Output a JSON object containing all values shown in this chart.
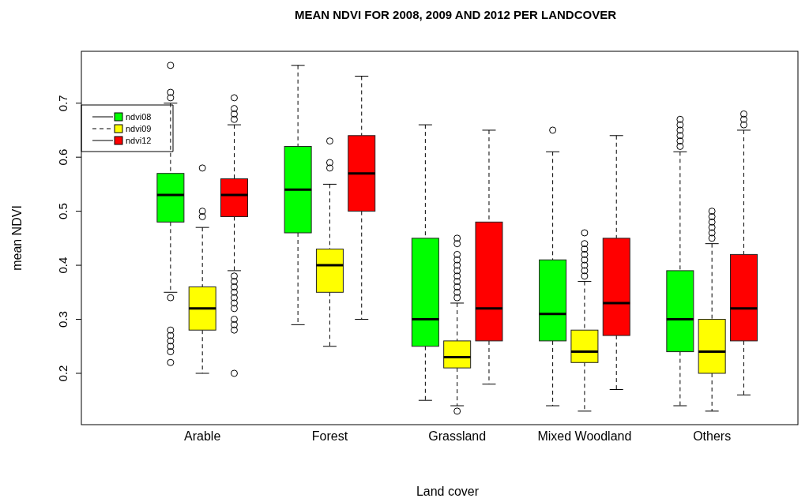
{
  "chart_data": {
    "type": "box",
    "title": "MEAN NDVI FOR 2008, 2009 AND 2012 PER LANDCOVER",
    "xlabel": "Land cover",
    "ylabel": "mean NDVI",
    "categories": [
      "Arable",
      "Forest",
      "Grassland",
      "Mixed Woodland",
      "Others"
    ],
    "ylim": [
      0.105,
      0.796
    ],
    "yticks": [
      0.2,
      0.3,
      0.4,
      0.5,
      0.6,
      0.7
    ],
    "grid": false,
    "legend": "top left",
    "series": [
      {
        "name": "ndvi08",
        "color": "#00ff00",
        "line_style": "solid",
        "boxes": [
          {
            "low": 0.35,
            "q1": 0.48,
            "median": 0.53,
            "q3": 0.57,
            "high": 0.7,
            "outliers": [
              0.77,
              0.72,
              0.71,
              0.34,
              0.28,
              0.27,
              0.26,
              0.25,
              0.24,
              0.22
            ]
          },
          {
            "low": 0.29,
            "q1": 0.46,
            "median": 0.54,
            "q3": 0.62,
            "high": 0.77
          },
          {
            "low": 0.15,
            "q1": 0.25,
            "median": 0.3,
            "q3": 0.45,
            "high": 0.66
          },
          {
            "low": 0.14,
            "q1": 0.26,
            "median": 0.31,
            "q3": 0.41,
            "high": 0.61,
            "outliers": [
              0.65
            ]
          },
          {
            "low": 0.14,
            "q1": 0.24,
            "median": 0.3,
            "q3": 0.39,
            "high": 0.61,
            "outliers": [
              0.67,
              0.66,
              0.65,
              0.64,
              0.63,
              0.62
            ]
          }
        ]
      },
      {
        "name": "ndvi09",
        "color": "#ffff00",
        "line_style": "dashed",
        "boxes": [
          {
            "low": 0.2,
            "q1": 0.28,
            "median": 0.32,
            "q3": 0.36,
            "high": 0.47,
            "outliers": [
              0.58,
              0.5,
              0.49
            ]
          },
          {
            "low": 0.25,
            "q1": 0.35,
            "median": 0.4,
            "q3": 0.43,
            "high": 0.55,
            "outliers": [
              0.63,
              0.59,
              0.58
            ]
          },
          {
            "low": 0.14,
            "q1": 0.21,
            "median": 0.23,
            "q3": 0.26,
            "high": 0.33,
            "outliers": [
              0.45,
              0.44,
              0.42,
              0.41,
              0.4,
              0.39,
              0.38,
              0.37,
              0.36,
              0.35,
              0.34,
              0.13
            ]
          },
          {
            "low": 0.13,
            "q1": 0.22,
            "median": 0.24,
            "q3": 0.28,
            "high": 0.37,
            "outliers": [
              0.46,
              0.44,
              0.43,
              0.42,
              0.41,
              0.4,
              0.39,
              0.38
            ]
          },
          {
            "low": 0.13,
            "q1": 0.2,
            "median": 0.24,
            "q3": 0.3,
            "high": 0.44,
            "outliers": [
              0.5,
              0.49,
              0.48,
              0.47,
              0.46,
              0.45
            ]
          }
        ]
      },
      {
        "name": "ndvi12",
        "color": "#ff0000",
        "line_style": "solid",
        "boxes": [
          {
            "low": 0.39,
            "q1": 0.49,
            "median": 0.53,
            "q3": 0.56,
            "high": 0.66,
            "outliers": [
              0.71,
              0.69,
              0.68,
              0.67,
              0.38,
              0.37,
              0.36,
              0.35,
              0.34,
              0.33,
              0.32,
              0.3,
              0.29,
              0.28,
              0.2
            ]
          },
          {
            "low": 0.3,
            "q1": 0.5,
            "median": 0.57,
            "q3": 0.64,
            "high": 0.75
          },
          {
            "low": 0.18,
            "q1": 0.26,
            "median": 0.32,
            "q3": 0.48,
            "high": 0.65
          },
          {
            "low": 0.17,
            "q1": 0.27,
            "median": 0.33,
            "q3": 0.45,
            "high": 0.64
          },
          {
            "low": 0.16,
            "q1": 0.26,
            "median": 0.32,
            "q3": 0.42,
            "high": 0.65,
            "outliers": [
              0.68,
              0.67,
              0.66
            ]
          }
        ]
      }
    ]
  }
}
